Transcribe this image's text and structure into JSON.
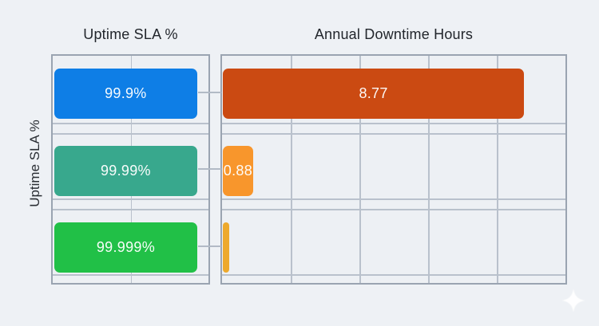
{
  "page": {
    "background_color": "#eef1f5"
  },
  "watermark": {
    "icon": "sparkle-icon",
    "color": "#ffffff"
  },
  "style_colors": {
    "panel_border": "#9aa4b1",
    "gridline": "#b9c1cc",
    "title_text": "#22262c",
    "bar_label_text": "#ffffff"
  },
  "chart_data": [
    {
      "name": "uptime",
      "type": "bar",
      "orientation": "horizontal",
      "title": "Uptime SLA %",
      "y_axis_label": "Uptime SLA %",
      "categories": [
        "99.9%",
        "99.99%",
        "99.999%"
      ],
      "values": [
        99.9,
        99.99,
        99.999
      ],
      "bar_labels": [
        "99.9%",
        "99.99%",
        "99.999%"
      ],
      "bar_colors": [
        "#0e7ee6",
        "#38a88d",
        "#21c047"
      ],
      "xlim": [
        0,
        109
      ],
      "grid": true,
      "legend": false
    },
    {
      "name": "downtime",
      "type": "bar",
      "orientation": "horizontal",
      "title": "Annual Downtime Hours",
      "categories": [
        "99.9%",
        "99.99%",
        "99.999%"
      ],
      "values": [
        8.77,
        0.88,
        0.09
      ],
      "bar_labels": [
        "8.77",
        "0.88",
        ""
      ],
      "bar_colors": [
        "#cb4a12",
        "#f8962c",
        "#eda92d"
      ],
      "xlim": [
        0,
        10
      ],
      "x_gridlines": [
        2,
        4,
        6,
        8
      ],
      "grid": true,
      "legend": false
    }
  ]
}
